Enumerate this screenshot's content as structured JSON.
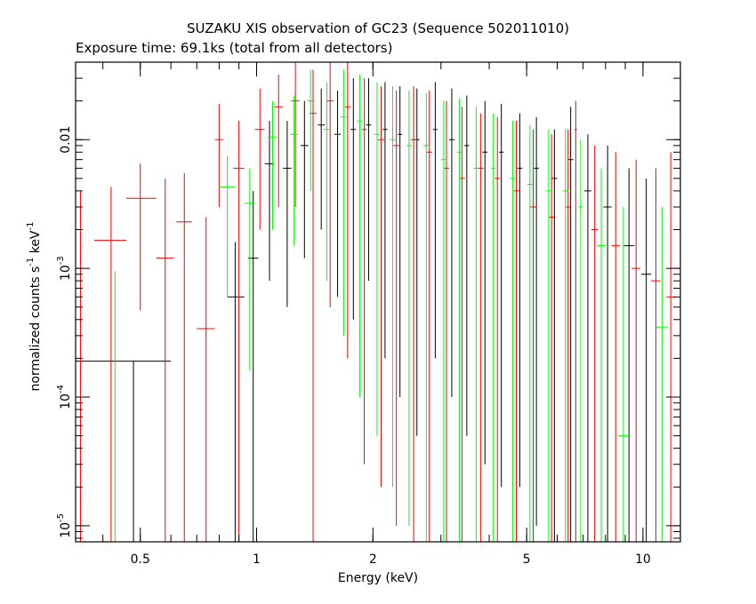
{
  "chart_data": {
    "type": "scatter",
    "title": "SUZAKU XIS observation of GC23 (Sequence 502011010)",
    "subtitle": "Exposure time: 69.1ks (total from all detectors)",
    "xlabel": "Energy (keV)",
    "ylabel_parts": [
      "normalized counts s",
      "-1",
      " keV",
      "-1"
    ],
    "x_scale": "log",
    "y_scale": "log",
    "xlim": [
      0.34,
      12.5
    ],
    "ylim": [
      7.5e-06,
      0.04
    ],
    "grid": false,
    "legend": "none",
    "x_ticks": [
      {
        "value": 0.5,
        "label": "0.5"
      },
      {
        "value": 1,
        "label": "1"
      },
      {
        "value": 2,
        "label": "2"
      },
      {
        "value": 5,
        "label": "5"
      },
      {
        "value": 10,
        "label": "10"
      }
    ],
    "y_ticks": [
      {
        "value": 1e-05,
        "mant": "10",
        "exp": "-5"
      },
      {
        "value": 0.0001,
        "mant": "10",
        "exp": "-4"
      },
      {
        "value": 0.001,
        "mant": "10",
        "exp": "-3"
      },
      {
        "value": 0.01,
        "mant": "0.01",
        "exp": ""
      }
    ],
    "series": [
      {
        "color": "#000000",
        "points": [
          {
            "x": 0.48,
            "y": 0.00019,
            "xlo": 0.34,
            "xhi": 0.6,
            "ylo": 7.5e-06,
            "yhi": 0.00019
          },
          {
            "x": 0.88,
            "y": 0.0006,
            "xlo": 0.84,
            "xhi": 0.93,
            "ylo": 7.5e-06,
            "yhi": 0.0016
          },
          {
            "x": 0.98,
            "y": 0.0012,
            "xlo": 0.95,
            "xhi": 1.01,
            "ylo": 7.5e-06,
            "yhi": 0.004
          },
          {
            "x": 1.08,
            "y": 0.0065,
            "xlo": 1.05,
            "xhi": 1.11,
            "ylo": 0.0008,
            "yhi": 0.014
          },
          {
            "x": 1.2,
            "y": 0.006,
            "xlo": 1.17,
            "xhi": 1.23,
            "ylo": 0.0005,
            "yhi": 0.014
          },
          {
            "x": 1.33,
            "y": 0.009,
            "xlo": 1.3,
            "xhi": 1.36,
            "ylo": 0.0012,
            "yhi": 0.02
          },
          {
            "x": 1.47,
            "y": 0.013,
            "xlo": 1.44,
            "xhi": 1.5,
            "ylo": 0.002,
            "yhi": 0.025
          },
          {
            "x": 1.62,
            "y": 0.011,
            "xlo": 1.59,
            "xhi": 1.65,
            "ylo": 0.0006,
            "yhi": 0.024
          },
          {
            "x": 1.78,
            "y": 0.012,
            "xlo": 1.75,
            "xhi": 1.81,
            "ylo": 0.0004,
            "yhi": 0.03
          },
          {
            "x": 1.95,
            "y": 0.013,
            "xlo": 1.92,
            "xhi": 1.98,
            "ylo": 0.0008,
            "yhi": 0.03
          },
          {
            "x": 2.15,
            "y": 0.012,
            "xlo": 2.12,
            "xhi": 2.18,
            "ylo": 0.0002,
            "yhi": 0.028
          },
          {
            "x": 2.35,
            "y": 0.011,
            "xlo": 2.32,
            "xhi": 2.38,
            "ylo": 0.0001,
            "yhi": 0.026
          },
          {
            "x": 2.6,
            "y": 0.01,
            "xlo": 2.56,
            "xhi": 2.64,
            "ylo": 5e-05,
            "yhi": 0.025
          },
          {
            "x": 2.9,
            "y": 0.012,
            "xlo": 2.86,
            "xhi": 2.94,
            "ylo": 0.0002,
            "yhi": 0.028
          },
          {
            "x": 3.2,
            "y": 0.01,
            "xlo": 3.15,
            "xhi": 3.25,
            "ylo": 0.0001,
            "yhi": 0.025
          },
          {
            "x": 3.5,
            "y": 0.009,
            "xlo": 3.45,
            "xhi": 3.55,
            "ylo": 5e-05,
            "yhi": 0.022
          },
          {
            "x": 3.9,
            "y": 0.008,
            "xlo": 3.84,
            "xhi": 3.96,
            "ylo": 3e-05,
            "yhi": 0.02
          },
          {
            "x": 4.3,
            "y": 0.008,
            "xlo": 4.24,
            "xhi": 4.36,
            "ylo": 2e-05,
            "yhi": 0.019
          },
          {
            "x": 4.8,
            "y": 0.006,
            "xlo": 4.73,
            "xhi": 4.87,
            "ylo": 2e-05,
            "yhi": 0.016
          },
          {
            "x": 5.3,
            "y": 0.006,
            "xlo": 5.22,
            "xhi": 5.38,
            "ylo": 1e-05,
            "yhi": 0.015
          },
          {
            "x": 5.9,
            "y": 0.005,
            "xlo": 5.8,
            "xhi": 6.0,
            "ylo": 7.5e-06,
            "yhi": 0.012
          },
          {
            "x": 6.5,
            "y": 0.007,
            "xlo": 6.4,
            "xhi": 6.6,
            "ylo": 7.5e-06,
            "yhi": 0.018
          },
          {
            "x": 7.2,
            "y": 0.004,
            "xlo": 7.05,
            "xhi": 7.35,
            "ylo": 7.5e-06,
            "yhi": 0.011
          },
          {
            "x": 8.1,
            "y": 0.003,
            "xlo": 7.9,
            "xhi": 8.3,
            "ylo": 7.5e-06,
            "yhi": 0.009
          },
          {
            "x": 9.2,
            "y": 0.0015,
            "xlo": 8.9,
            "xhi": 9.5,
            "ylo": 7.5e-06,
            "yhi": 0.006
          },
          {
            "x": 10.2,
            "y": 0.0009,
            "xlo": 9.9,
            "xhi": 10.5,
            "ylo": 7.5e-06,
            "yhi": 0.005
          }
        ]
      },
      {
        "color": "#ff0000",
        "points": [
          {
            "x": 0.35,
            "y": 7.5e-06,
            "xlo": 0.345,
            "xhi": 0.355,
            "ylo": 7.5e-06,
            "yhi": 0.004
          },
          {
            "x": 0.42,
            "y": 0.00165,
            "xlo": 0.38,
            "xhi": 0.46,
            "ylo": 7.5e-06,
            "yhi": 0.0043
          },
          {
            "x": 0.5,
            "y": 0.0035,
            "xlo": 0.46,
            "xhi": 0.55,
            "ylo": 0.00047,
            "yhi": 0.0065
          },
          {
            "x": 0.58,
            "y": 0.0012,
            "xlo": 0.55,
            "xhi": 0.61,
            "ylo": 7.5e-06,
            "yhi": 0.005
          },
          {
            "x": 0.65,
            "y": 0.0023,
            "xlo": 0.62,
            "xhi": 0.68,
            "ylo": 7.5e-06,
            "yhi": 0.0055
          },
          {
            "x": 0.74,
            "y": 0.00034,
            "xlo": 0.7,
            "xhi": 0.78,
            "ylo": 7.5e-06,
            "yhi": 0.0025
          },
          {
            "x": 0.8,
            "y": 0.01,
            "xlo": 0.78,
            "xhi": 0.82,
            "ylo": 0.003,
            "yhi": 0.019
          },
          {
            "x": 0.9,
            "y": 0.006,
            "xlo": 0.87,
            "xhi": 0.93,
            "ylo": 7.5e-06,
            "yhi": 0.014
          },
          {
            "x": 1.02,
            "y": 0.012,
            "xlo": 0.99,
            "xhi": 1.05,
            "ylo": 0.002,
            "yhi": 0.025
          },
          {
            "x": 1.14,
            "y": 0.018,
            "xlo": 1.11,
            "xhi": 1.17,
            "ylo": 0.003,
            "yhi": 0.032
          },
          {
            "x": 1.26,
            "y": 0.02,
            "xlo": 1.23,
            "xhi": 1.29,
            "ylo": 0.003,
            "yhi": 0.04
          },
          {
            "x": 1.4,
            "y": 0.016,
            "xlo": 1.37,
            "xhi": 1.43,
            "ylo": 7.5e-06,
            "yhi": 0.035
          },
          {
            "x": 1.55,
            "y": 0.02,
            "xlo": 1.52,
            "xhi": 1.58,
            "ylo": 0.0005,
            "yhi": 0.04
          },
          {
            "x": 1.72,
            "y": 0.018,
            "xlo": 1.69,
            "xhi": 1.75,
            "ylo": 0.0002,
            "yhi": 0.04
          },
          {
            "x": 1.9,
            "y": 0.012,
            "xlo": 1.87,
            "xhi": 1.93,
            "ylo": 3e-05,
            "yhi": 0.03
          },
          {
            "x": 2.1,
            "y": 0.01,
            "xlo": 2.06,
            "xhi": 2.14,
            "ylo": 2e-05,
            "yhi": 0.026
          },
          {
            "x": 2.3,
            "y": 0.009,
            "xlo": 2.26,
            "xhi": 2.34,
            "ylo": 1e-05,
            "yhi": 0.024
          },
          {
            "x": 2.55,
            "y": 0.01,
            "xlo": 2.5,
            "xhi": 2.6,
            "ylo": 7.5e-06,
            "yhi": 0.026
          },
          {
            "x": 2.8,
            "y": 0.008,
            "xlo": 2.75,
            "xhi": 2.85,
            "ylo": 7.5e-06,
            "yhi": 0.024
          },
          {
            "x": 3.1,
            "y": 0.006,
            "xlo": 3.05,
            "xhi": 3.15,
            "ylo": 7.5e-06,
            "yhi": 0.02
          },
          {
            "x": 3.4,
            "y": 0.005,
            "xlo": 3.34,
            "xhi": 3.46,
            "ylo": 7.5e-06,
            "yhi": 0.018
          },
          {
            "x": 3.8,
            "y": 0.006,
            "xlo": 3.73,
            "xhi": 3.87,
            "ylo": 7.5e-06,
            "yhi": 0.016
          },
          {
            "x": 4.2,
            "y": 0.005,
            "xlo": 4.13,
            "xhi": 4.27,
            "ylo": 7.5e-06,
            "yhi": 0.015
          },
          {
            "x": 4.7,
            "y": 0.004,
            "xlo": 4.62,
            "xhi": 4.78,
            "ylo": 7.5e-06,
            "yhi": 0.014
          },
          {
            "x": 5.2,
            "y": 0.003,
            "xlo": 5.1,
            "xhi": 5.3,
            "ylo": 7.5e-06,
            "yhi": 0.012
          },
          {
            "x": 5.8,
            "y": 0.0025,
            "xlo": 5.7,
            "xhi": 5.9,
            "ylo": 7.5e-06,
            "yhi": 0.011
          },
          {
            "x": 6.4,
            "y": 0.003,
            "xlo": 6.3,
            "xhi": 6.5,
            "ylo": 7.5e-06,
            "yhi": 0.012
          },
          {
            "x": 6.7,
            "y": 0.012,
            "xlo": 6.65,
            "xhi": 6.75,
            "ylo": 7.5e-06,
            "yhi": 0.02
          },
          {
            "x": 7.5,
            "y": 0.002,
            "xlo": 7.35,
            "xhi": 7.65,
            "ylo": 7.5e-06,
            "yhi": 0.009
          },
          {
            "x": 8.5,
            "y": 0.0015,
            "xlo": 8.3,
            "xhi": 8.7,
            "ylo": 7.5e-06,
            "yhi": 0.008
          },
          {
            "x": 9.6,
            "y": 0.001,
            "xlo": 9.35,
            "xhi": 9.85,
            "ylo": 7.5e-06,
            "yhi": 0.007
          },
          {
            "x": 10.8,
            "y": 0.0008,
            "xlo": 10.5,
            "xhi": 11.1,
            "ylo": 7.5e-06,
            "yhi": 0.006
          },
          {
            "x": 11.8,
            "y": 0.0006,
            "xlo": 11.5,
            "xhi": 12.1,
            "ylo": 7.5e-06,
            "yhi": 0.008
          }
        ]
      },
      {
        "color": "#00ff00",
        "points": [
          {
            "x": 0.43,
            "y": 7.5e-06,
            "xlo": 0.425,
            "xhi": 0.435,
            "ylo": 7.5e-06,
            "yhi": 0.00095
          },
          {
            "x": 0.84,
            "y": 0.0043,
            "xlo": 0.8,
            "xhi": 0.88,
            "ylo": 0.0006,
            "yhi": 0.0075
          },
          {
            "x": 0.96,
            "y": 0.0032,
            "xlo": 0.93,
            "xhi": 0.99,
            "ylo": 0.00016,
            "yhi": 0.006
          },
          {
            "x": 1.1,
            "y": 0.0105,
            "xlo": 1.07,
            "xhi": 1.13,
            "ylo": 0.002,
            "yhi": 0.02
          },
          {
            "x": 1.25,
            "y": 0.011,
            "xlo": 1.22,
            "xhi": 1.28,
            "ylo": 0.0015,
            "yhi": 0.022
          },
          {
            "x": 1.38,
            "y": 0.02,
            "xlo": 1.35,
            "xhi": 1.41,
            "ylo": 0.004,
            "yhi": 0.035
          },
          {
            "x": 1.52,
            "y": 0.012,
            "xlo": 1.49,
            "xhi": 1.55,
            "ylo": 0.0008,
            "yhi": 0.028
          },
          {
            "x": 1.68,
            "y": 0.015,
            "xlo": 1.65,
            "xhi": 1.71,
            "ylo": 0.0003,
            "yhi": 0.035
          },
          {
            "x": 1.85,
            "y": 0.014,
            "xlo": 1.82,
            "xhi": 1.88,
            "ylo": 0.0001,
            "yhi": 0.032
          },
          {
            "x": 2.05,
            "y": 0.011,
            "xlo": 2.02,
            "xhi": 2.08,
            "ylo": 5e-05,
            "yhi": 0.028
          },
          {
            "x": 2.25,
            "y": 0.01,
            "xlo": 2.21,
            "xhi": 2.29,
            "ylo": 2e-05,
            "yhi": 0.026
          },
          {
            "x": 2.48,
            "y": 0.009,
            "xlo": 2.44,
            "xhi": 2.52,
            "ylo": 1e-05,
            "yhi": 0.024
          },
          {
            "x": 2.75,
            "y": 0.009,
            "xlo": 2.7,
            "xhi": 2.8,
            "ylo": 7.5e-06,
            "yhi": 0.023
          },
          {
            "x": 3.05,
            "y": 0.007,
            "xlo": 3.0,
            "xhi": 3.1,
            "ylo": 7.5e-06,
            "yhi": 0.02
          },
          {
            "x": 3.35,
            "y": 0.008,
            "xlo": 3.3,
            "xhi": 3.4,
            "ylo": 7.5e-06,
            "yhi": 0.021
          },
          {
            "x": 3.7,
            "y": 0.006,
            "xlo": 3.64,
            "xhi": 3.76,
            "ylo": 7.5e-06,
            "yhi": 0.018
          },
          {
            "x": 4.1,
            "y": 0.006,
            "xlo": 4.04,
            "xhi": 4.16,
            "ylo": 7.5e-06,
            "yhi": 0.016
          },
          {
            "x": 4.6,
            "y": 0.005,
            "xlo": 4.53,
            "xhi": 4.67,
            "ylo": 7.5e-06,
            "yhi": 0.014
          },
          {
            "x": 5.1,
            "y": 0.0045,
            "xlo": 5.02,
            "xhi": 5.18,
            "ylo": 7.5e-06,
            "yhi": 0.013
          },
          {
            "x": 5.7,
            "y": 0.004,
            "xlo": 5.6,
            "xhi": 5.8,
            "ylo": 7.5e-06,
            "yhi": 0.012
          },
          {
            "x": 6.3,
            "y": 0.004,
            "xlo": 6.2,
            "xhi": 6.4,
            "ylo": 7.5e-06,
            "yhi": 0.012
          },
          {
            "x": 6.9,
            "y": 0.003,
            "xlo": 6.8,
            "xhi": 7.0,
            "ylo": 7.5e-06,
            "yhi": 0.01
          },
          {
            "x": 7.8,
            "y": 0.0015,
            "xlo": 7.6,
            "xhi": 8.0,
            "ylo": 7.5e-06,
            "yhi": 0.006
          },
          {
            "x": 8.9,
            "y": 5e-05,
            "xlo": 8.6,
            "xhi": 9.2,
            "ylo": 7.5e-06,
            "yhi": 0.003
          },
          {
            "x": 11.2,
            "y": 0.00035,
            "xlo": 10.8,
            "xhi": 11.6,
            "ylo": 7.5e-06,
            "yhi": 0.003
          }
        ]
      }
    ]
  }
}
